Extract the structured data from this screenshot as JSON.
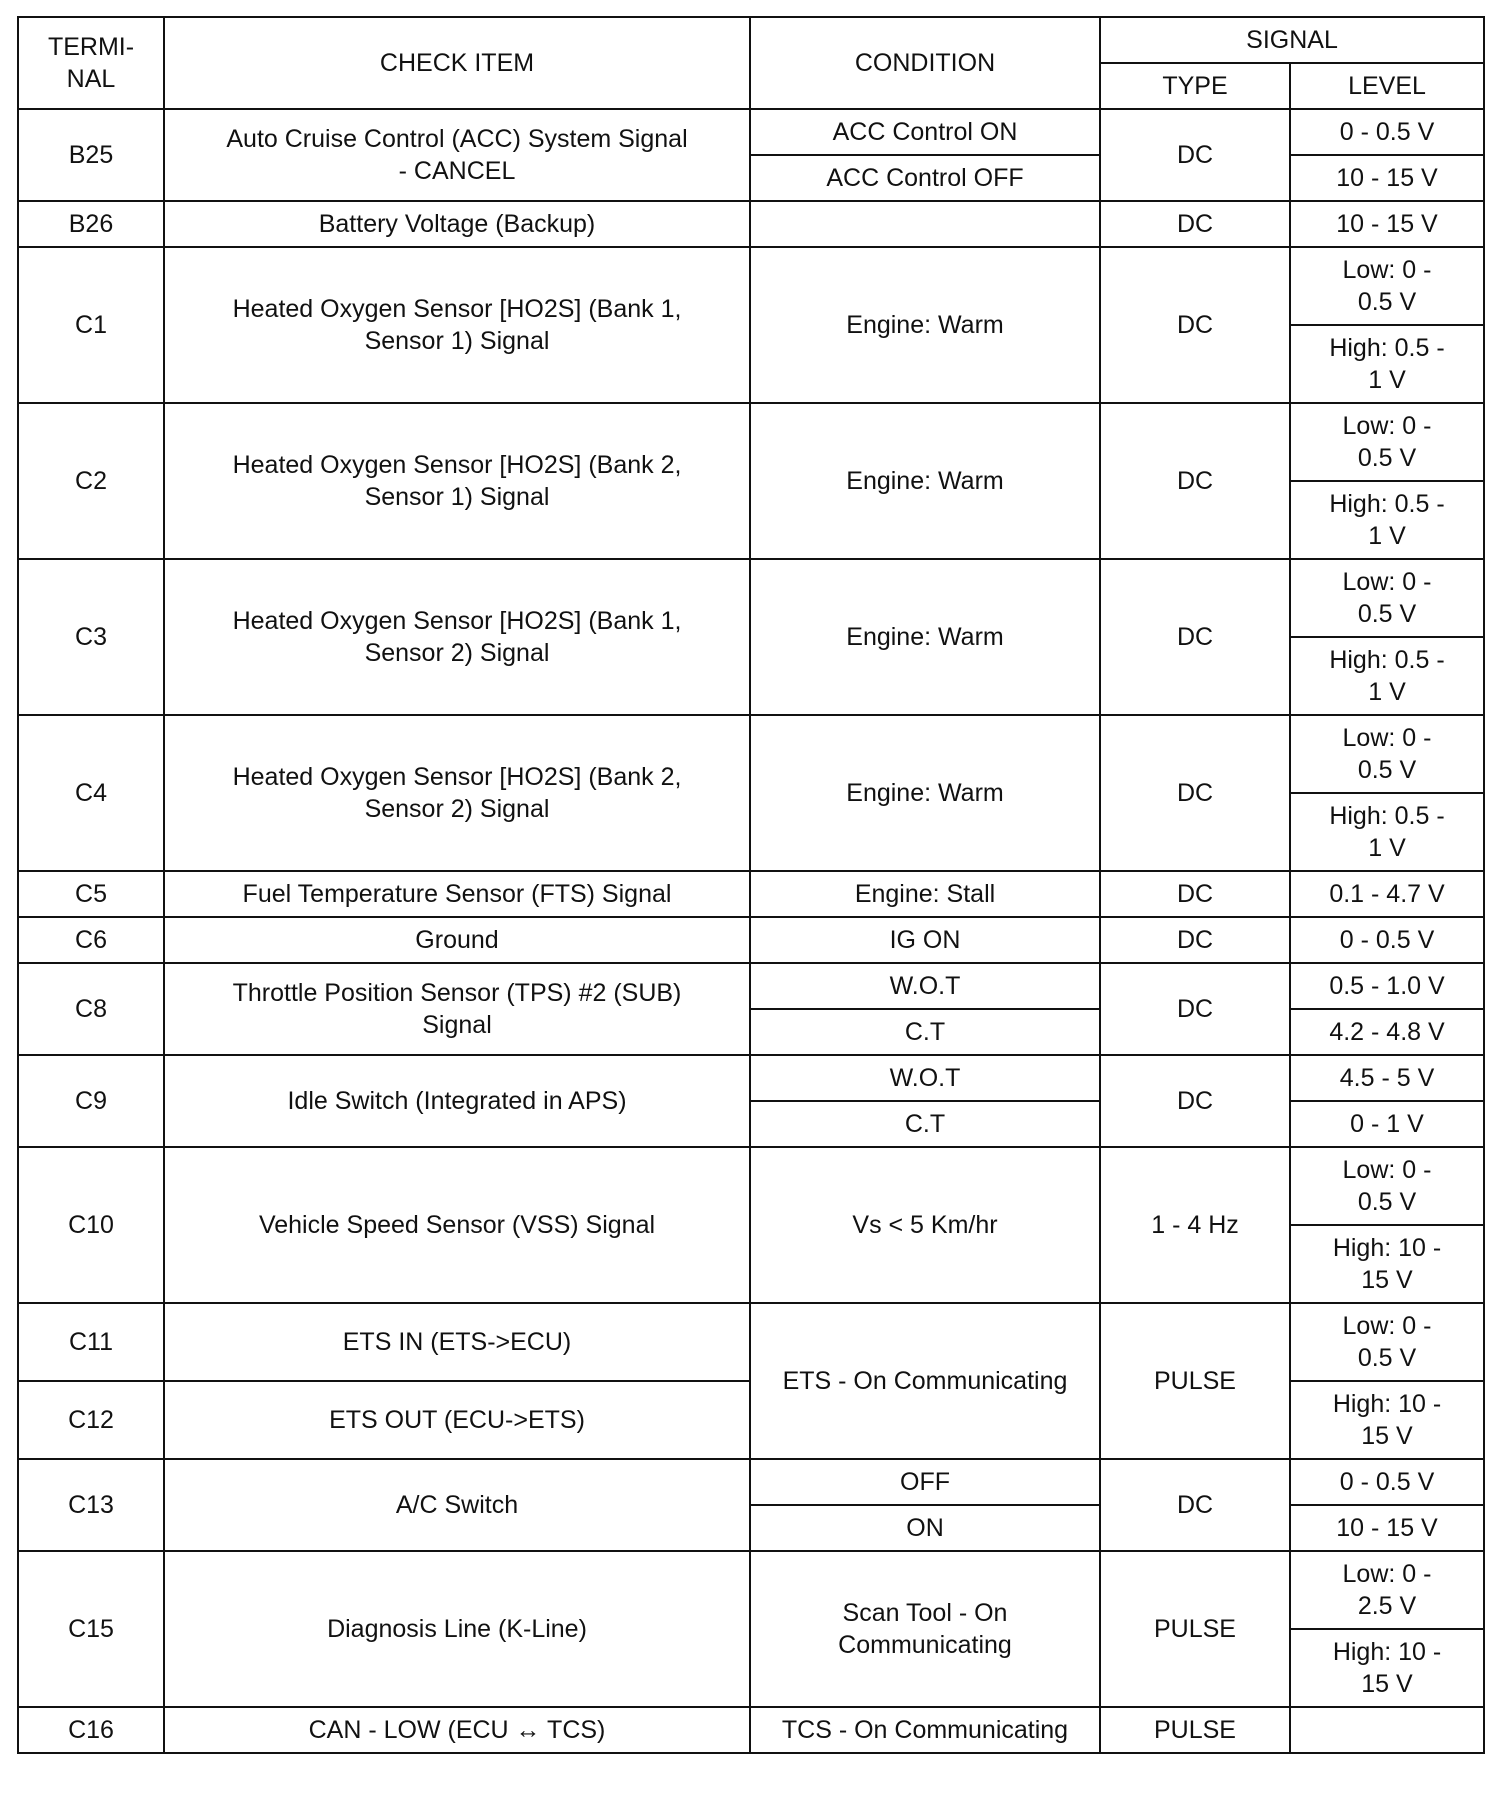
{
  "header": {
    "terminal": "TERMI- NAL",
    "check_item": "CHECK ITEM",
    "condition": "CONDITION",
    "signal": "SIGNAL",
    "type": "TYPE",
    "level": "LEVEL"
  },
  "rows": [
    {
      "terminal": [
        "B25"
      ],
      "check_item": [
        "Auto Cruise Control (ACC) System Signal - CANCEL"
      ],
      "conditions": [
        "ACC Control ON",
        "ACC Control OFF"
      ],
      "type": [
        "DC"
      ],
      "levels": [
        "0 - 0.5 V",
        "10 - 15 V"
      ]
    },
    {
      "terminal": [
        "B26"
      ],
      "check_item": [
        "Battery Voltage (Backup)"
      ],
      "conditions": [
        ""
      ],
      "type": [
        "DC"
      ],
      "levels": [
        "10 - 15 V"
      ]
    },
    {
      "terminal": [
        "C1"
      ],
      "check_item": [
        "Heated Oxygen Sensor [HO2S] (Bank 1, Sensor 1) Signal"
      ],
      "conditions": [
        "Engine:  Warm"
      ],
      "type": [
        "DC"
      ],
      "levels": [
        "Low:  0 - 0.5 V",
        "High:  0.5 - 1 V"
      ]
    },
    {
      "terminal": [
        "C2"
      ],
      "check_item": [
        "Heated Oxygen Sensor [HO2S] (Bank 2, Sensor 1) Signal"
      ],
      "conditions": [
        "Engine:  Warm"
      ],
      "type": [
        "DC"
      ],
      "levels": [
        "Low:  0 - 0.5 V",
        "High:  0.5 - 1 V"
      ]
    },
    {
      "terminal": [
        "C3"
      ],
      "check_item": [
        "Heated Oxygen Sensor [HO2S] (Bank 1, Sensor 2) Signal"
      ],
      "conditions": [
        "Engine:  Warm"
      ],
      "type": [
        "DC"
      ],
      "levels": [
        "Low:  0 - 0.5 V",
        "High:  0.5 - 1 V"
      ]
    },
    {
      "terminal": [
        "C4"
      ],
      "check_item": [
        "Heated Oxygen Sensor [HO2S] (Bank 2, Sensor 2) Signal"
      ],
      "conditions": [
        "Engine:  Warm"
      ],
      "type": [
        "DC"
      ],
      "levels": [
        "Low:  0 - 0.5 V",
        "High:  0.5 - 1 V"
      ]
    },
    {
      "terminal": [
        "C5"
      ],
      "check_item": [
        "Fuel Temperature Sensor (FTS) Signal"
      ],
      "conditions": [
        "Engine:  Stall"
      ],
      "type": [
        "DC"
      ],
      "levels": [
        "0.1 - 4.7 V"
      ]
    },
    {
      "terminal": [
        "C6"
      ],
      "check_item": [
        "Ground"
      ],
      "conditions": [
        "IG  ON"
      ],
      "type": [
        "DC"
      ],
      "levels": [
        "0 - 0.5 V"
      ]
    },
    {
      "terminal": [
        "C8"
      ],
      "check_item": [
        "Throttle Position Sensor (TPS) #2 (SUB) Signal"
      ],
      "conditions": [
        "W.O.T",
        "C.T"
      ],
      "type": [
        "DC"
      ],
      "levels": [
        "0.5 - 1.0 V",
        "4.2 - 4.8 V"
      ]
    },
    {
      "terminal": [
        "C9"
      ],
      "check_item": [
        "Idle Switch (Integrated in APS)"
      ],
      "conditions": [
        "W.O.T",
        "C.T"
      ],
      "type": [
        "DC"
      ],
      "levels": [
        "4.5 - 5 V",
        "0 - 1 V"
      ]
    },
    {
      "terminal": [
        "C10"
      ],
      "check_item": [
        "Vehicle Speed Sensor (VSS) Signal"
      ],
      "conditions": [
        "Vs < 5 Km/hr"
      ],
      "type": [
        "1 - 4 Hz"
      ],
      "levels": [
        "Low:  0 - 0.5 V",
        "High:  10 - 15 V"
      ]
    },
    {
      "terminal": [
        "C11",
        "C12"
      ],
      "check_item": [
        "ETS IN (ETS->ECU)",
        "ETS OUT (ECU->ETS)"
      ],
      "conditions": [
        "ETS - On Communicating"
      ],
      "type": [
        "PULSE"
      ],
      "levels": [
        "Low:  0 - 0.5 V",
        "High:  10 - 15 V"
      ]
    },
    {
      "terminal": [
        "C13"
      ],
      "check_item": [
        "A/C Switch"
      ],
      "conditions": [
        "OFF",
        "ON"
      ],
      "type": [
        "DC"
      ],
      "levels": [
        "0 - 0.5 V",
        "10 - 15 V"
      ]
    },
    {
      "terminal": [
        "C15"
      ],
      "check_item": [
        "Diagnosis Line (K-Line)"
      ],
      "conditions": [
        "Scan Tool - On Communicating"
      ],
      "type": [
        "PULSE"
      ],
      "levels": [
        "Low:  0 - 2.5 V",
        "High:  10 - 15 V"
      ]
    },
    {
      "terminal": [
        "C16"
      ],
      "check_item": [
        "CAN - LOW (ECU ↔ TCS)"
      ],
      "conditions": [
        "TCS - On Communicating"
      ],
      "type": [
        "PULSE"
      ],
      "levels": [
        ""
      ]
    }
  ]
}
